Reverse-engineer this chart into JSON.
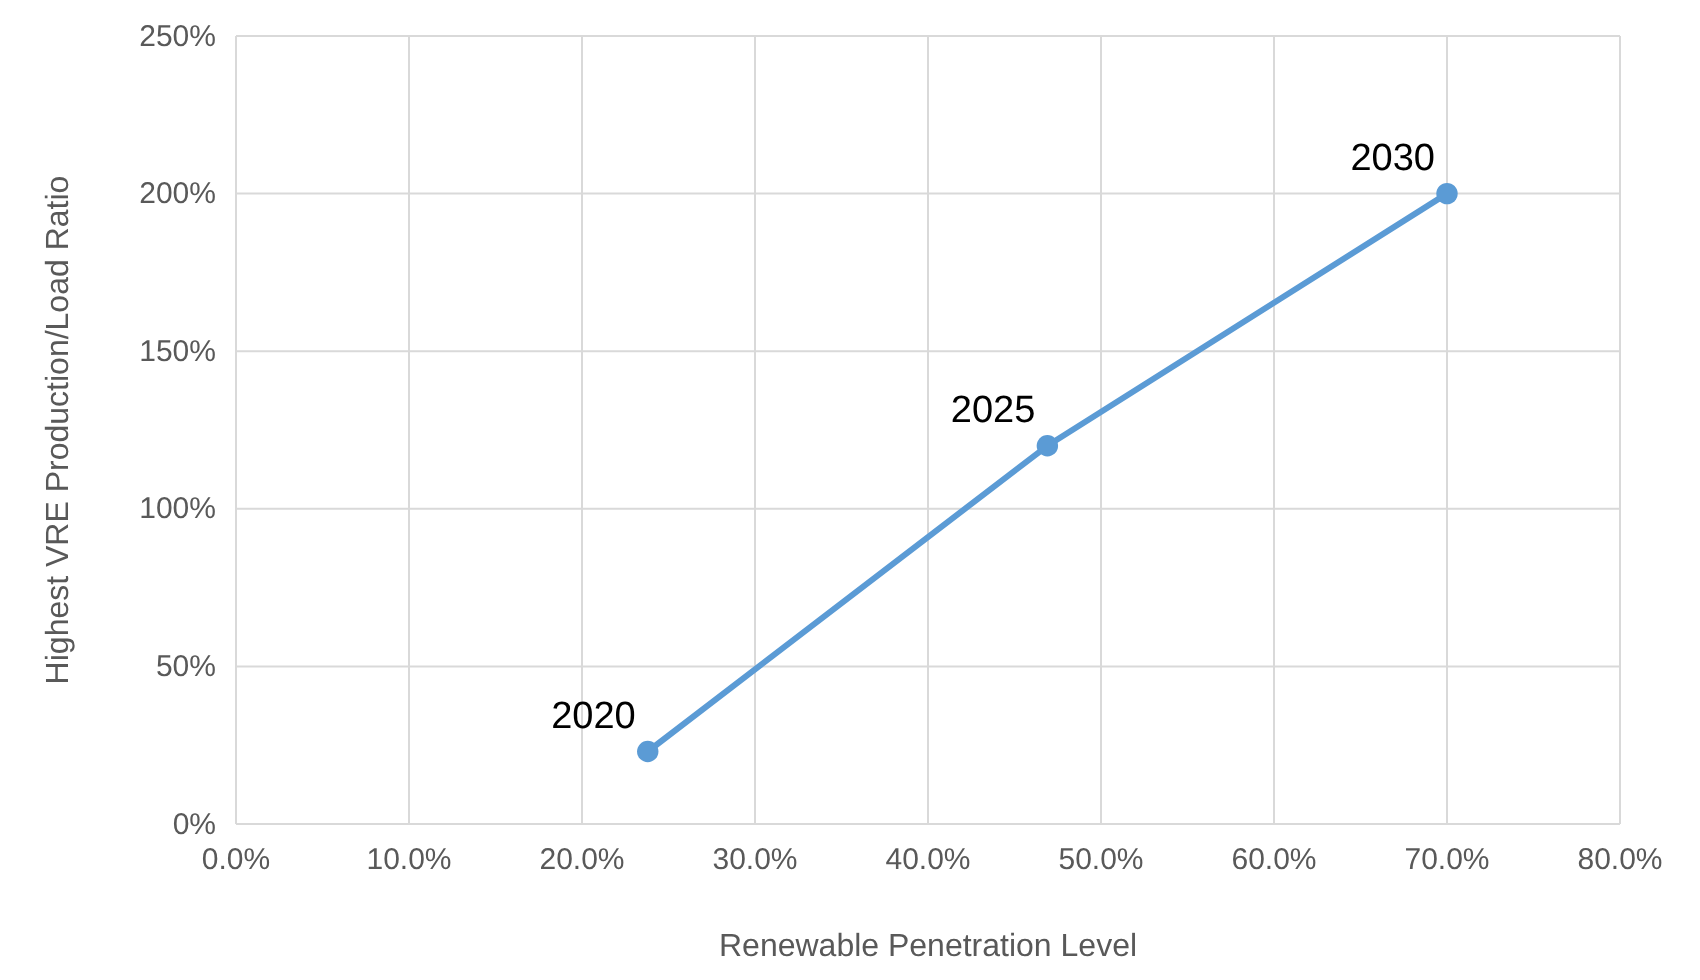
{
  "chart_data": {
    "type": "line",
    "xlabel": "Renewable Penetration Level",
    "ylabel": "Highest VRE Production/Load Ratio",
    "x": [
      23.8,
      46.9,
      70
    ],
    "series": [
      {
        "color": "#5b9bd5",
        "values": [
          23,
          120,
          200
        ]
      }
    ],
    "xlim": [
      0,
      80
    ],
    "xticks": [
      {
        "value": 0,
        "label": "0.0%"
      },
      {
        "value": 10,
        "label": "10.0%"
      },
      {
        "value": 20,
        "label": "20.0%"
      },
      {
        "value": 30,
        "label": "30.0%"
      },
      {
        "value": 40,
        "label": "40.0%"
      },
      {
        "value": 50,
        "label": "50.0%"
      },
      {
        "value": 60,
        "label": "60.0%"
      },
      {
        "value": 70,
        "label": "70.0%"
      },
      {
        "value": 80,
        "label": "80.0%"
      }
    ],
    "ylim": [
      0,
      250
    ],
    "yticks": [
      {
        "value": 0,
        "label": "0%"
      },
      {
        "value": 50,
        "label": "50%"
      },
      {
        "value": 100,
        "label": "100%"
      },
      {
        "value": 150,
        "label": "150%"
      },
      {
        "value": 200,
        "label": "200%"
      },
      {
        "value": 250,
        "label": "250%"
      }
    ],
    "annotations": [
      {
        "text": "2020",
        "x": 23.8,
        "y": 23
      },
      {
        "text": "2025",
        "x": 46.9,
        "y": 120
      },
      {
        "text": "2030",
        "x": 70,
        "y": 200
      }
    ],
    "grid": true,
    "marker": "circle",
    "line_style": "solid"
  }
}
